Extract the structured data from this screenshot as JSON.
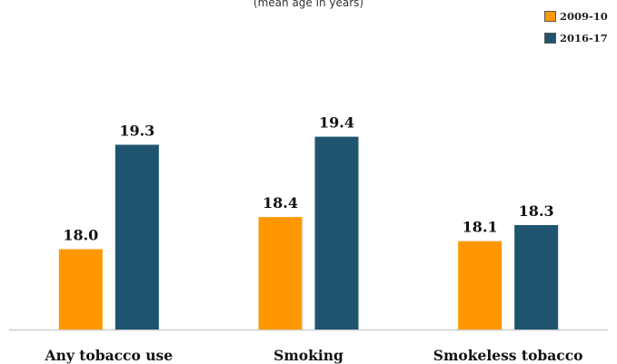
{
  "subtitle": "(mean age in years)",
  "colors": {
    "series_2009": "#ff9800",
    "series_2016": "#1f5470",
    "baseline": "#cccccc",
    "label_text": "#111111"
  },
  "chart_data": {
    "type": "bar",
    "title": "",
    "subtitle": "(mean age in years)",
    "categories": [
      "Any tobacco use",
      "Smoking",
      "Smokeless tobacco"
    ],
    "series": [
      {
        "name": "2009-10",
        "values": [
          18.0,
          18.4,
          18.1
        ],
        "labels": [
          "18.0",
          "18.4",
          "18.1"
        ]
      },
      {
        "name": "2016-17",
        "values": [
          19.3,
          19.4,
          18.3
        ],
        "labels": [
          "19.3",
          "19.4",
          "18.3"
        ]
      }
    ],
    "xlabel": "",
    "ylabel": "",
    "y_axis_visible": false,
    "grid": false,
    "legend_position": "top-right",
    "data_labels": true
  }
}
